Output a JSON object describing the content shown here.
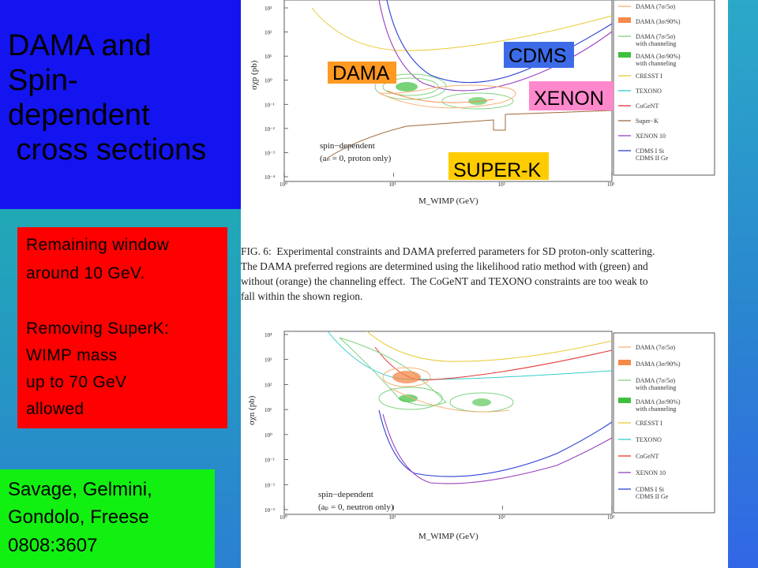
{
  "slide": {
    "title_lines": [
      "DAMA and",
      "Spin-",
      "dependent",
      " cross sections"
    ],
    "note_lines": [
      "Remaining window",
      "around 10 GeV.",
      "",
      "Removing SuperK:",
      "WIMP mass",
      "up to 70 GeV",
      "allowed"
    ],
    "reference_lines": [
      "Savage, Gelmini,",
      "Gondolo, Freese",
      "0808:3607"
    ],
    "tags": {
      "dama": "DAMA",
      "cdms": "CDMS",
      "xenon": "XENON",
      "superk": "SUPER-K"
    }
  },
  "figure_top": {
    "annotation_lines": [
      "spin−dependent",
      "(aₙ = 0, proton only)"
    ],
    "ylabel": "σχp (pb)",
    "xlabel": "M_WIMP (GeV)",
    "y_ticks": [
      "10³",
      "10²",
      "10¹",
      "10⁰",
      "10⁻¹",
      "10⁻²",
      "10⁻³",
      "10⁻⁴"
    ],
    "x_ticks": [
      "10⁰",
      "10¹",
      "10²",
      "10³"
    ],
    "legend": [
      {
        "label": "DAMA (7σ/5σ)",
        "color": "#f7b27a"
      },
      {
        "label": "DAMA (3σ/90%)",
        "color": "#f48a4a"
      },
      {
        "label": "DAMA (7σ/5σ)",
        "sub": "with channeling",
        "color": "#7fd37f"
      },
      {
        "label": "DAMA (3σ/90%)",
        "sub": "with channeling",
        "color": "#3fbf3f"
      },
      {
        "label": "CRESST I",
        "color": "#e8c830"
      },
      {
        "label": "TEXONO",
        "color": "#33cccc"
      },
      {
        "label": "CoGeNT",
        "color": "#e33333"
      },
      {
        "label": "Super−K",
        "color": "#a0683a"
      },
      {
        "label": "XENON 10",
        "color": "#9a3fbf"
      },
      {
        "label": "CDMS I Si",
        "sub": "CDMS II Ge",
        "color": "#2a3fd6"
      }
    ]
  },
  "caption_lines": [
    "FIG. 6:  Experimental constraints and DAMA preferred parameters for SD proton-only scattering.",
    "The DAMA preferred regions are determined using the likelihood ratio method with (green) and",
    "without (orange) the channeling effect.  The CoGeNT and TEXONO constraints are too weak to",
    "fall within the shown region."
  ],
  "figure_bottom": {
    "annotation_lines": [
      "spin−dependent",
      "(aₚ = 0, neutron only)"
    ],
    "ylabel": "σχn (pb)",
    "xlabel": "M_WIMP (GeV)",
    "y_ticks": [
      "10⁴",
      "10³",
      "10²",
      "10¹",
      "10⁰",
      "10⁻¹",
      "10⁻²",
      "10⁻³"
    ],
    "x_ticks": [
      "10⁰",
      "10¹",
      "10²",
      "10³"
    ],
    "legend": [
      {
        "label": "DAMA (7σ/5σ)",
        "color": "#f7b27a"
      },
      {
        "label": "DAMA (3σ/90%)",
        "color": "#f48a4a"
      },
      {
        "label": "DAMA (7σ/5σ)",
        "sub": "with channeling",
        "color": "#7fd37f"
      },
      {
        "label": "DAMA (3σ/90%)",
        "sub": "with channeling",
        "color": "#3fbf3f"
      },
      {
        "label": "CRESST I",
        "color": "#e8c830"
      },
      {
        "label": "TEXONO",
        "color": "#33cccc"
      },
      {
        "label": "CoGeNT",
        "color": "#e33333"
      },
      {
        "label": "XENON 10",
        "color": "#9a3fbf"
      },
      {
        "label": "CDMS I Si",
        "sub": "CDMS II Ge",
        "color": "#2a3fd6"
      }
    ]
  }
}
